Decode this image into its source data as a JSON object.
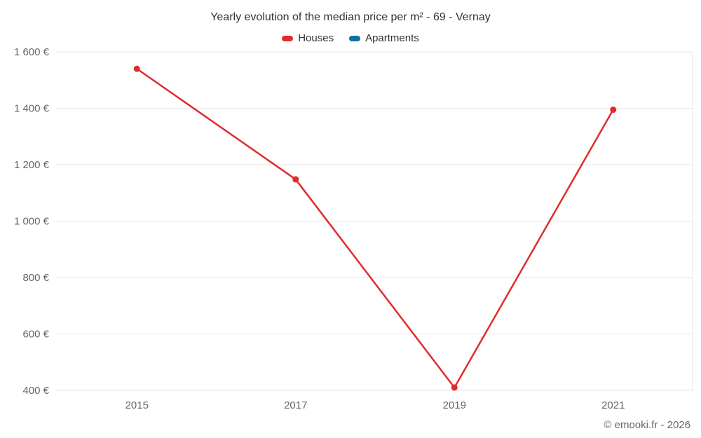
{
  "title": "Yearly evolution of the median price per m² - 69 - Vernay",
  "legend": {
    "items": [
      {
        "label": "Houses",
        "color": "#e02c2c"
      },
      {
        "label": "Apartments",
        "color": "#1272a0"
      }
    ]
  },
  "footer": {
    "credit": "© emooki.fr - 2026"
  },
  "chart_data": {
    "type": "line",
    "title": "Yearly evolution of the median price per m² - 69 - Vernay",
    "categories": [
      "2015",
      "2017",
      "2019",
      "2021"
    ],
    "series": [
      {
        "name": "Houses",
        "color": "#e02c2c",
        "values": [
          1540,
          1148,
          410,
          1395
        ]
      },
      {
        "name": "Apartments",
        "color": "#1272a0",
        "values": []
      }
    ],
    "xlabel": "",
    "ylabel": "",
    "ylim": [
      400,
      1600
    ],
    "yticks": [
      400,
      600,
      800,
      1000,
      1200,
      1400,
      1600
    ],
    "ytick_labels": [
      "400 €",
      "600 €",
      "800 €",
      "1 000 €",
      "1 200 €",
      "1 400 €",
      "1 600 €"
    ],
    "grid": "horizontal",
    "legend_position": "top",
    "marker": "circle"
  }
}
